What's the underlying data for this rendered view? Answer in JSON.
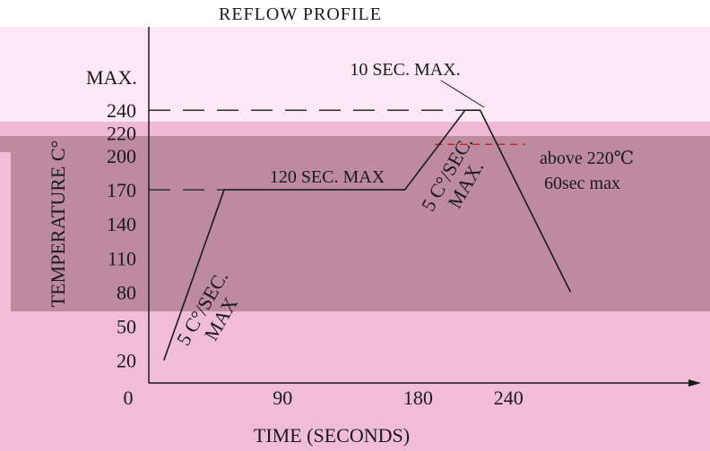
{
  "chart_data": {
    "type": "line",
    "title": "REFLOW PROFILE",
    "xlabel": "TIME (SECONDS)",
    "ylabel": "TEMPERATURE C°",
    "xlim": [
      0,
      300
    ],
    "ylim": [
      0,
      260
    ],
    "x_ticks": [
      "0",
      "90",
      "180",
      "240"
    ],
    "y_ticks": [
      "20",
      "50",
      "80",
      "110",
      "140",
      "170",
      "200",
      "220",
      "240"
    ],
    "y_max_label": "MAX.",
    "series": [
      {
        "x": [
          10,
          50,
          170,
          210,
          220,
          280
        ],
        "y": [
          20,
          170,
          170,
          240,
          240,
          80
        ]
      }
    ],
    "reference_lines": [
      {
        "y": 240,
        "x_from": 0,
        "x_to": 210
      },
      {
        "y": 170,
        "x_from": 0,
        "x_to": 50
      },
      {
        "y": 210,
        "x_from": 190,
        "x_to": 250
      }
    ],
    "annotations": [
      {
        "id": "peak",
        "text": "10 SEC. MAX."
      },
      {
        "id": "soak",
        "text": "120 SEC. MAX"
      },
      {
        "id": "above1",
        "text": "above 220℃"
      },
      {
        "id": "above2",
        "text": "60sec max"
      },
      {
        "id": "ramp1a",
        "text": "5 C°/SEC."
      },
      {
        "id": "ramp1b",
        "text": "MAX"
      },
      {
        "id": "ramp2a",
        "text": "5 C°/SEC."
      },
      {
        "id": "ramp2b",
        "text": "MAX."
      }
    ],
    "grid": false,
    "legend": "none"
  },
  "colors": {
    "bg_light_pink": "#f9d8ec",
    "bg_pale_pink": "#fde9f6",
    "bg_mid_pink": "#efb9d5",
    "bg_mauve": "#be8aa0",
    "axis": "#1a1a1a",
    "dashed_accent": "#cc2222"
  }
}
